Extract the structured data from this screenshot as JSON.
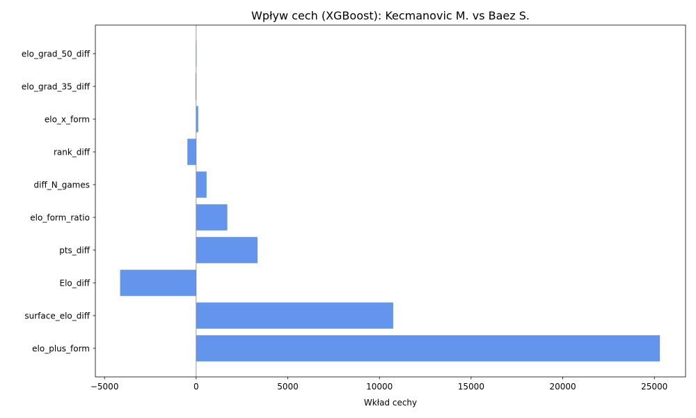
{
  "chart_data": {
    "type": "bar",
    "orientation": "horizontal",
    "title": "Wpływ cech (XGBoost): Kecmanovic M. vs Baez S.",
    "xlabel": "Wkład cechy",
    "ylabel": "",
    "xlim": [
      -5500,
      26700
    ],
    "xticks": [
      -5000,
      0,
      5000,
      10000,
      15000,
      20000,
      25000
    ],
    "xtick_labels": [
      "−5000",
      "0",
      "5000",
      "10000",
      "15000",
      "20000",
      "25000"
    ],
    "categories": [
      "elo_plus_form",
      "surface_elo_diff",
      "Elo_diff",
      "pts_diff",
      "elo_form_ratio",
      "diff_N_games",
      "rank_diff",
      "elo_x_form",
      "elo_grad_35_diff",
      "elo_grad_50_diff"
    ],
    "values": [
      25300,
      10750,
      -4150,
      3350,
      1700,
      570,
      -480,
      110,
      -35,
      -20
    ],
    "bar_color": "#6495ed",
    "zero_line_color": "#808080",
    "grid": false,
    "legend": "none"
  }
}
